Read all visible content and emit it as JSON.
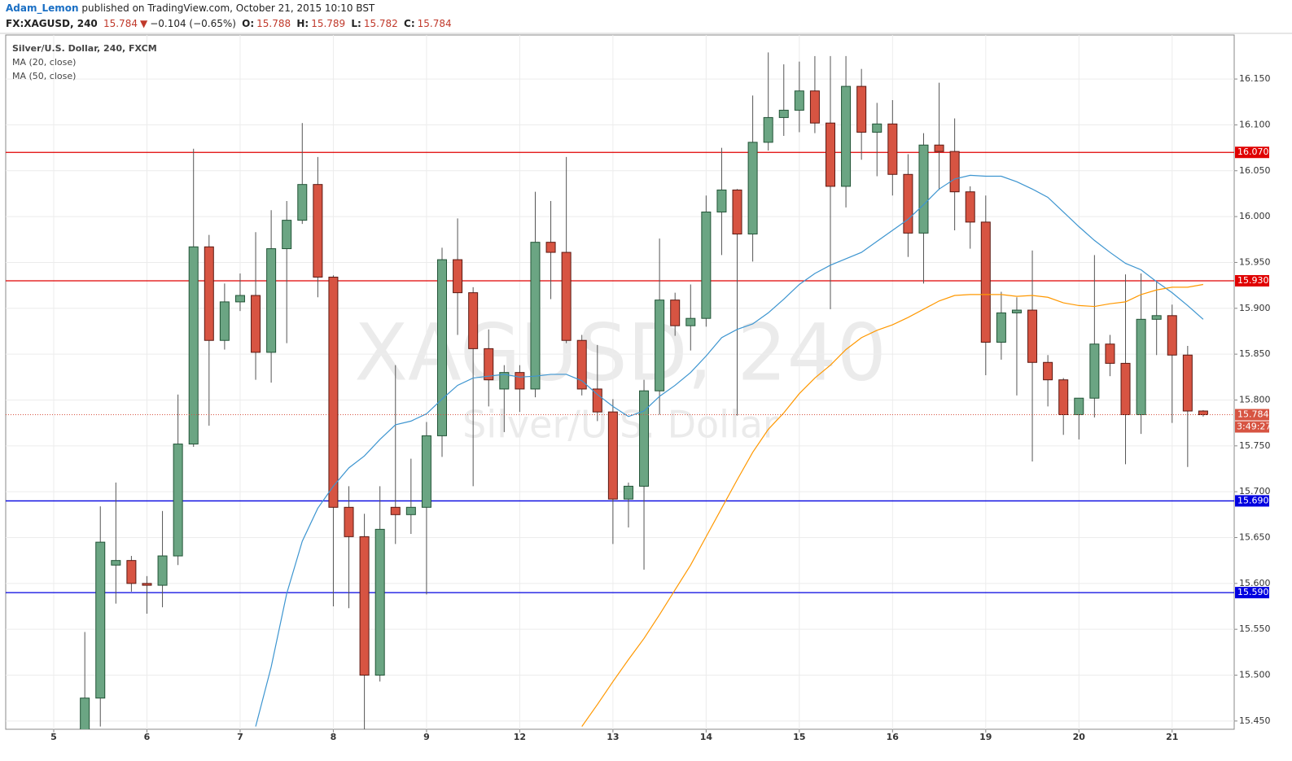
{
  "header": {
    "author": "Adam_Lemon",
    "published": "published on TradingView.com, October 21, 2015 10:10 BST"
  },
  "quote": {
    "symbol": "FX:XAGUSD, 240",
    "last": "15.784",
    "arrow": "▼",
    "change": "−0.104 (−0.65%)",
    "open_label": "O:",
    "open": "15.788",
    "high_label": "H:",
    "high": "15.789",
    "low_label": "L:",
    "low": "15.782",
    "close_label": "C:",
    "close": "15.784"
  },
  "chart_data": {
    "type": "candlestick",
    "title": "Silver/U.S. Dollar, 240, FXCM",
    "watermark": "XAGUSD, 240",
    "watermark_subtitle": "Silver/U.S. Dollar",
    "categories": [
      "5",
      null,
      null,
      null,
      null,
      null,
      "6",
      null,
      null,
      null,
      null,
      null,
      "7",
      null,
      null,
      null,
      null,
      null,
      "8",
      null,
      null,
      null,
      null,
      null,
      "9",
      null,
      null,
      null,
      null,
      null,
      "12",
      null,
      null,
      null,
      null,
      null,
      "13",
      null,
      null,
      null,
      null,
      null,
      "14",
      null,
      null,
      null,
      null,
      null,
      "15",
      null,
      null,
      null,
      null,
      null,
      "16",
      null,
      null,
      null,
      null,
      null,
      "19",
      null,
      null,
      null,
      null,
      null,
      "20",
      null,
      null,
      null,
      null,
      null,
      "21",
      null,
      null
    ],
    "open": [
      null,
      null,
      15.44,
      15.475,
      15.62,
      15.625,
      15.6,
      15.598,
      15.63,
      15.752,
      15.967,
      15.865,
      15.907,
      15.914,
      15.852,
      15.965,
      15.996,
      16.035,
      15.934,
      15.683,
      15.651,
      15.5,
      15.683,
      15.675,
      15.683,
      15.761,
      15.953,
      15.917,
      15.856,
      15.812,
      15.83,
      15.812,
      15.972,
      15.961,
      15.865,
      15.812,
      15.787,
      15.692,
      15.706,
      15.81,
      15.909,
      15.881,
      15.889,
      16.005,
      16.029,
      15.981,
      16.081,
      16.108,
      16.116,
      16.137,
      16.102,
      16.033,
      16.142,
      16.092,
      16.101,
      16.046,
      15.982,
      16.078,
      16.071,
      16.027,
      15.994,
      15.863,
      15.895,
      15.898,
      15.841,
      15.822,
      15.784,
      15.802,
      15.861,
      15.84,
      15.784,
      15.888,
      15.892,
      15.849,
      15.788
    ],
    "high": [
      null,
      null,
      15.547,
      15.684,
      15.71,
      15.63,
      15.608,
      15.679,
      15.806,
      16.074,
      15.98,
      15.927,
      15.938,
      15.983,
      16.007,
      16.017,
      16.102,
      16.065,
      15.936,
      15.706,
      15.676,
      15.706,
      15.838,
      15.736,
      15.776,
      15.966,
      15.998,
      15.923,
      15.877,
      15.838,
      15.838,
      16.027,
      16.017,
      16.065,
      15.871,
      15.86,
      15.801,
      15.71,
      15.822,
      15.976,
      15.917,
      15.926,
      16.023,
      16.075,
      16.03,
      16.132,
      16.179,
      16.166,
      16.169,
      16.175,
      16.175,
      16.175,
      16.161,
      16.124,
      16.127,
      16.068,
      16.091,
      16.146,
      16.107,
      16.033,
      16.023,
      15.918,
      15.912,
      15.963,
      15.849,
      15.824,
      15.802,
      15.958,
      15.871,
      15.937,
      15.938,
      15.929,
      15.904,
      15.859,
      15.789
    ],
    "low": [
      null,
      null,
      15.43,
      15.444,
      15.578,
      15.591,
      15.567,
      15.574,
      15.62,
      15.749,
      15.772,
      15.855,
      15.897,
      15.822,
      15.819,
      15.862,
      15.992,
      15.912,
      15.575,
      15.573,
      15.441,
      15.493,
      15.643,
      15.654,
      15.588,
      15.738,
      15.871,
      15.706,
      15.793,
      15.765,
      15.787,
      15.803,
      15.91,
      15.862,
      15.805,
      15.777,
      15.643,
      15.661,
      15.615,
      15.784,
      15.87,
      15.854,
      15.88,
      15.958,
      15.783,
      15.951,
      16.072,
      16.088,
      16.092,
      16.091,
      15.899,
      16.01,
      16.062,
      16.044,
      16.023,
      15.956,
      15.927,
      16.029,
      15.985,
      15.965,
      15.827,
      15.844,
      15.805,
      15.733,
      15.793,
      15.762,
      15.757,
      15.781,
      15.826,
      15.73,
      15.763,
      15.849,
      15.775,
      15.727,
      15.782
    ],
    "close": [
      null,
      null,
      15.475,
      15.645,
      15.625,
      15.6,
      15.598,
      15.63,
      15.752,
      15.967,
      15.865,
      15.907,
      15.914,
      15.852,
      15.965,
      15.996,
      16.035,
      15.934,
      15.683,
      15.651,
      15.5,
      15.659,
      15.675,
      15.683,
      15.761,
      15.953,
      15.917,
      15.856,
      15.822,
      15.83,
      15.812,
      15.972,
      15.961,
      15.865,
      15.812,
      15.787,
      15.692,
      15.706,
      15.81,
      15.909,
      15.881,
      15.889,
      16.005,
      16.029,
      15.981,
      16.081,
      16.108,
      16.116,
      16.137,
      16.102,
      16.033,
      16.142,
      16.092,
      16.101,
      16.046,
      15.982,
      16.078,
      16.071,
      16.027,
      15.994,
      15.863,
      15.895,
      15.898,
      15.841,
      15.822,
      15.784,
      15.802,
      15.861,
      15.84,
      15.784,
      15.888,
      15.892,
      15.849,
      15.788,
      15.784
    ],
    "up_color": "#6ba583",
    "down_color": "#d75442",
    "series": [
      {
        "name": "MA (20, close)",
        "color": "#3d95d0",
        "values": [
          null,
          null,
          null,
          null,
          null,
          null,
          null,
          null,
          null,
          null,
          null,
          null,
          null,
          15.444,
          15.509,
          15.589,
          15.646,
          15.682,
          15.706,
          15.726,
          15.739,
          15.757,
          15.773,
          15.777,
          15.785,
          15.801,
          15.816,
          15.824,
          15.826,
          15.828,
          15.825,
          15.826,
          15.828,
          15.828,
          15.821,
          15.806,
          15.793,
          15.782,
          15.788,
          15.804,
          15.816,
          15.83,
          15.848,
          15.868,
          15.877,
          15.883,
          15.895,
          15.91,
          15.926,
          15.938,
          15.947,
          15.954,
          15.961,
          15.973,
          15.985,
          15.997,
          16.013,
          16.03,
          16.041,
          16.045,
          16.044,
          16.044,
          16.038,
          16.03,
          16.021,
          16.005,
          15.989,
          15.974,
          15.961,
          15.949,
          15.942,
          15.929,
          15.917,
          15.903,
          15.888
        ]
      },
      {
        "name": "MA (50, close)",
        "color": "#ff9800",
        "values": [
          null,
          null,
          null,
          null,
          null,
          null,
          null,
          null,
          null,
          null,
          null,
          null,
          null,
          null,
          null,
          null,
          null,
          null,
          null,
          null,
          null,
          null,
          null,
          null,
          null,
          null,
          null,
          null,
          null,
          null,
          null,
          null,
          null,
          null,
          15.444,
          15.468,
          15.493,
          15.517,
          15.54,
          15.566,
          15.593,
          15.62,
          15.651,
          15.682,
          15.713,
          15.743,
          15.768,
          15.786,
          15.807,
          15.824,
          15.838,
          15.855,
          15.868,
          15.876,
          15.882,
          15.89,
          15.899,
          15.908,
          15.914,
          15.915,
          15.915,
          15.915,
          15.913,
          15.914,
          15.912,
          15.906,
          15.903,
          15.902,
          15.905,
          15.907,
          15.915,
          15.92,
          15.923,
          15.923,
          15.926
        ]
      }
    ],
    "levels": [
      {
        "value": 16.07,
        "label": "16.070",
        "color": "#e00000"
      },
      {
        "value": 15.93,
        "label": "15.930",
        "color": "#e00000"
      },
      {
        "value": 15.69,
        "label": "15.690",
        "color": "#0000e0"
      },
      {
        "value": 15.59,
        "label": "15.590",
        "color": "#0000e0"
      }
    ],
    "last_price": 15.784,
    "countdown": "3:49:27",
    "ylim": [
      15.441,
      16.198
    ],
    "yticks": [
      {
        "value": 15.45,
        "label": "15.450"
      },
      {
        "value": 15.5,
        "label": "15.500"
      },
      {
        "value": 15.55,
        "label": "15.550"
      },
      {
        "value": 15.6,
        "label": "15.600"
      },
      {
        "value": 15.65,
        "label": "15.650"
      },
      {
        "value": 15.7,
        "label": "15.700"
      },
      {
        "value": 15.75,
        "label": "15.750"
      },
      {
        "value": 15.8,
        "label": "15.800"
      },
      {
        "value": 15.85,
        "label": "15.850"
      },
      {
        "value": 15.9,
        "label": "15.900"
      },
      {
        "value": 15.95,
        "label": "15.950"
      },
      {
        "value": 16.0,
        "label": "16.000"
      },
      {
        "value": 16.05,
        "label": "16.050"
      },
      {
        "value": 16.1,
        "label": "16.100"
      },
      {
        "value": 16.15,
        "label": "16.150"
      }
    ],
    "grid": true
  }
}
